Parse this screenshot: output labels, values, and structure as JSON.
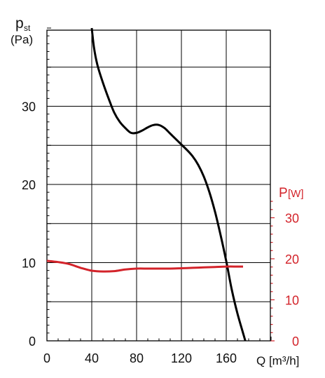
{
  "chart_data": {
    "type": "line",
    "ylabel_main": "p",
    "ylabel_sub": "st",
    "ylabel_unit": "(Pa)",
    "y2label_main": "P",
    "y2label_unit": "[W]",
    "xlabel": "Q [m³/h]",
    "xlim": [
      0,
      200
    ],
    "ylim": [
      0,
      40
    ],
    "y2lim": [
      0,
      35
    ],
    "x_ticks": [
      0,
      40,
      80,
      120,
      160
    ],
    "y_ticks": [
      0,
      10,
      20,
      30
    ],
    "y2_ticks": [
      0,
      10,
      20,
      30
    ],
    "grid": true,
    "colors": {
      "pressure": "#000000",
      "power": "#d3232a",
      "axis2": "#d3232a"
    },
    "series": [
      {
        "axis": "left",
        "x": [
          40,
          42,
          45,
          50,
          55,
          60,
          65,
          70,
          75,
          80,
          85,
          90,
          95,
          100,
          105,
          110,
          115,
          120,
          125,
          130,
          135,
          140,
          145,
          150,
          155,
          160,
          165,
          170,
          175,
          177
        ],
        "y": [
          40,
          37.5,
          35.3,
          33,
          31,
          29.2,
          28,
          27.2,
          26.6,
          26.6,
          26.9,
          27.3,
          27.6,
          27.6,
          27.2,
          26.5,
          25.8,
          25.1,
          24.4,
          23.6,
          22.5,
          21,
          19,
          16.5,
          13.5,
          10.2,
          6.5,
          3.5,
          1,
          0
        ]
      },
      {
        "axis": "right",
        "x": [
          0,
          10,
          20,
          30,
          40,
          50,
          60,
          70,
          80,
          90,
          100,
          110,
          120,
          130,
          140,
          150,
          160,
          170,
          175
        ],
        "y": [
          19.5,
          19.2,
          18.7,
          17.8,
          17.1,
          16.9,
          17,
          17.4,
          17.6,
          17.6,
          17.6,
          17.6,
          17.7,
          17.8,
          17.9,
          18.0,
          18.1,
          18.1,
          18.1
        ]
      }
    ]
  }
}
